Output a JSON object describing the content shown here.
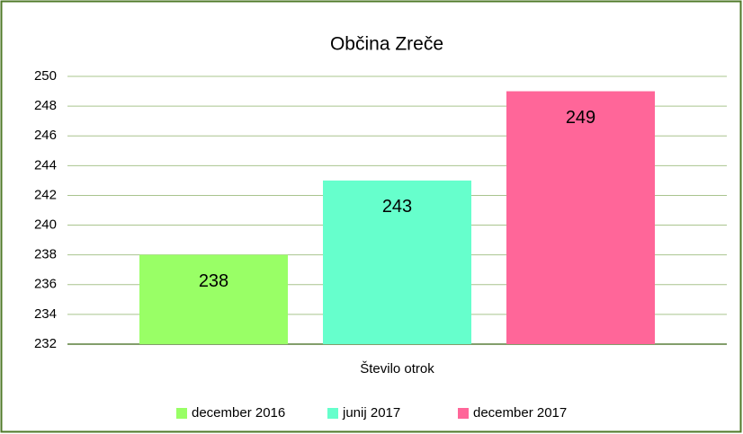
{
  "chart_data": {
    "type": "bar",
    "title": "Občina Zreče",
    "categories": [
      "Število otrok"
    ],
    "series": [
      {
        "name": "december 2016",
        "color": "#99ff66",
        "values": [
          238
        ]
      },
      {
        "name": "junij 2017",
        "color": "#66ffcc",
        "values": [
          243
        ]
      },
      {
        "name": "december 2017",
        "color": "#ff6699",
        "values": [
          249
        ]
      }
    ],
    "ylim": [
      232,
      250
    ],
    "yticks": [
      232,
      234,
      236,
      238,
      240,
      242,
      244,
      246,
      248,
      250
    ],
    "grid": true,
    "legend": "bottom",
    "data_labels": true
  }
}
